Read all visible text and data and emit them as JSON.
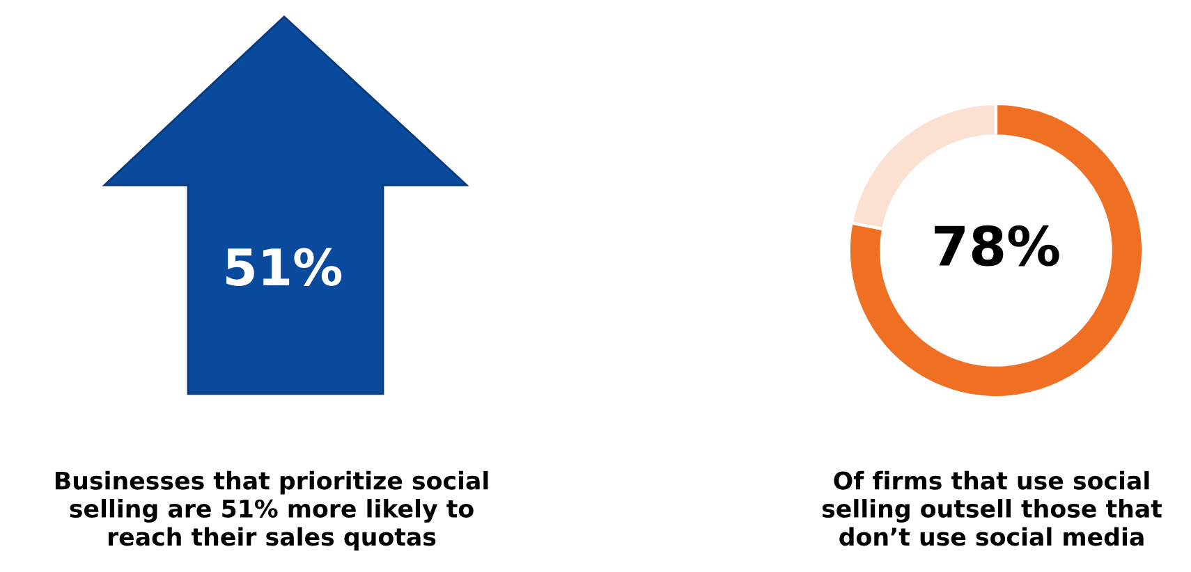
{
  "chart_data": [
    {
      "type": "other",
      "color": "#0a4a9c",
      "annotations": [
        "51%",
        "Businesses that prioritize social\nselling are 51% more likely to\nreach their sales quotas"
      ]
    },
    {
      "type": "donut",
      "categories": [
        null,
        null
      ],
      "values": [
        78,
        22
      ],
      "colors": [
        "#f07023",
        "#fce0d2"
      ],
      "annotations": [
        "78%",
        "Of firms that use social\nselling outsell those that\ndon’t use social media"
      ]
    }
  ]
}
